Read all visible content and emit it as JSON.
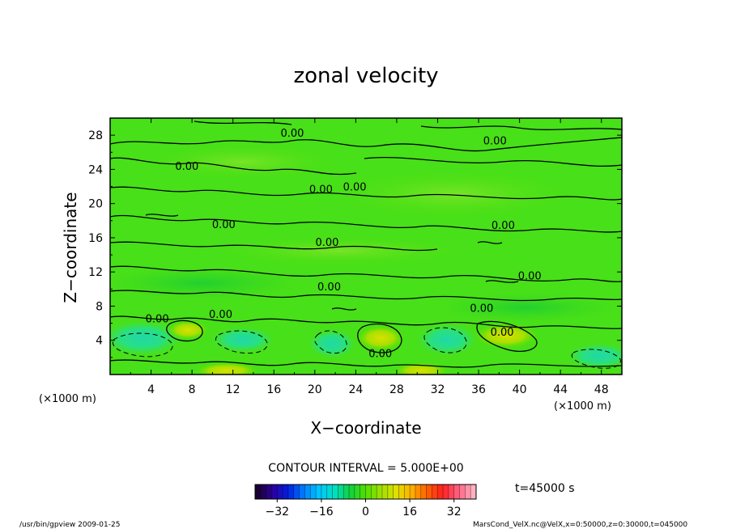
{
  "chart_data": {
    "type": "contour",
    "title": "zonal velocity",
    "xlabel": "X−coordinate",
    "ylabel": "Z−coordinate",
    "x_unit_left": "(×1000 m)",
    "x_unit_right": "(×1000 m)",
    "xlim": [
      0,
      50
    ],
    "ylim": [
      0,
      30
    ],
    "xticks": [
      "4",
      "8",
      "12",
      "16",
      "20",
      "24",
      "28",
      "32",
      "36",
      "40",
      "44",
      "48"
    ],
    "yticks": [
      "4",
      "8",
      "12",
      "16",
      "20",
      "24",
      "28"
    ],
    "x_tick_values": [
      4,
      8,
      12,
      16,
      20,
      24,
      28,
      32,
      36,
      40,
      44,
      48
    ],
    "y_tick_values": [
      4,
      8,
      12,
      16,
      20,
      24,
      28
    ],
    "contour_interval_text": "CONTOUR INTERVAL = 5.000E+00",
    "contour_labels": [
      {
        "text": "0.00",
        "x": 17.8,
        "z": 28.3
      },
      {
        "text": "0.00",
        "x": 37.6,
        "z": 27.4
      },
      {
        "text": "0.00",
        "x": 7.5,
        "z": 24.4
      },
      {
        "text": "0.00",
        "x": 23.9,
        "z": 22.0
      },
      {
        "text": "0.00",
        "x": 20.6,
        "z": 21.7
      },
      {
        "text": "0.00",
        "x": 11.1,
        "z": 17.6
      },
      {
        "text": "0.00",
        "x": 38.4,
        "z": 17.5
      },
      {
        "text": "0.00",
        "x": 21.2,
        "z": 15.5
      },
      {
        "text": "0.00",
        "x": 41.0,
        "z": 11.6
      },
      {
        "text": "0.00",
        "x": 21.4,
        "z": 10.3
      },
      {
        "text": "0.00",
        "x": 36.3,
        "z": 7.8
      },
      {
        "text": "0.00",
        "x": 4.6,
        "z": 6.6
      },
      {
        "text": "0.00",
        "x": 10.8,
        "z": 7.1
      },
      {
        "text": "0.00",
        "x": 38.3,
        "z": 5.0
      },
      {
        "text": "0.00",
        "x": 26.4,
        "z": 2.5
      }
    ],
    "colorbar": {
      "ticks": [
        "−32",
        "−16",
        "0",
        "16",
        "32"
      ],
      "tick_values": [
        -32,
        -16,
        0,
        16,
        32
      ],
      "range": [
        -40,
        40
      ],
      "colors": [
        "#1a0033",
        "#2b00a0",
        "#0020e0",
        "#0080ff",
        "#00c8ff",
        "#00e0c0",
        "#10d040",
        "#50e000",
        "#a0e000",
        "#e0e000",
        "#ffb000",
        "#ff6000",
        "#ff2020",
        "#ff6080",
        "#ffb0c0"
      ]
    },
    "time_label": "t=45000 s",
    "grid": false
  },
  "footer": {
    "left": "/usr/bin/gpview  2009-01-25",
    "right": "MarsCond_VelX.nc@VelX,x=0:50000,z=0:30000,t=045000"
  }
}
